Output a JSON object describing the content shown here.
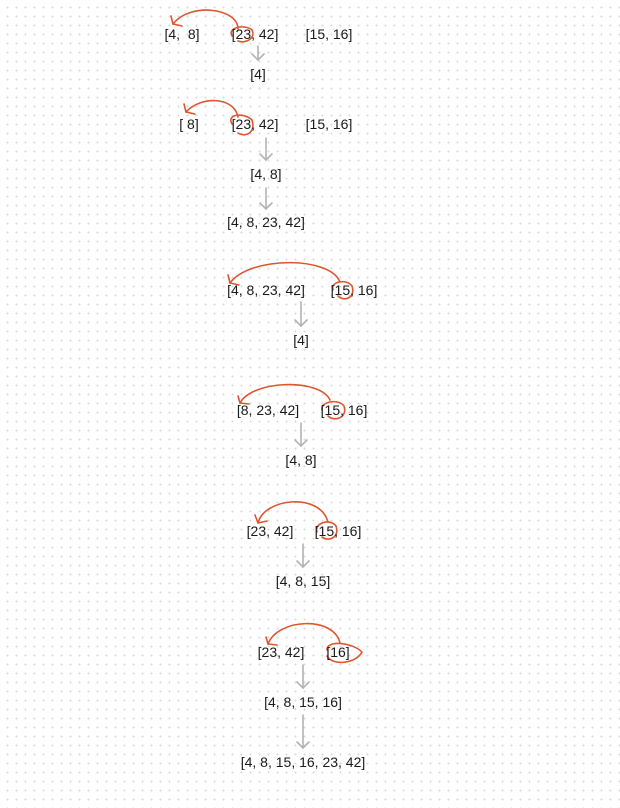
{
  "colors": {
    "arrow": "#b3b3b3",
    "annotation": "#e0542f",
    "text": "#1a1a1a"
  },
  "steps": [
    {
      "lists": [
        "[4,  8]",
        "[23, 42]",
        "[15, 16]"
      ],
      "output": "[4]"
    },
    {
      "lists": [
        "[ 8]",
        "[23, 42]",
        "[15, 16]"
      ],
      "output": "[4, 8]",
      "merged": "[4, 8, 23, 42]"
    },
    {
      "lists": [
        "[4, 8, 23, 42]",
        "[15, 16]"
      ],
      "output": "[4]"
    },
    {
      "lists": [
        "[8, 23, 42]",
        "[15, 16]"
      ],
      "output": "[4, 8]"
    },
    {
      "lists": [
        "[23, 42]",
        "[15, 16]"
      ],
      "output": "[4, 8, 15]"
    },
    {
      "lists": [
        "[23, 42]",
        "[16]"
      ],
      "output": "[4, 8, 15, 16]",
      "final": "[4, 8, 15, 16, 23, 42]"
    }
  ]
}
